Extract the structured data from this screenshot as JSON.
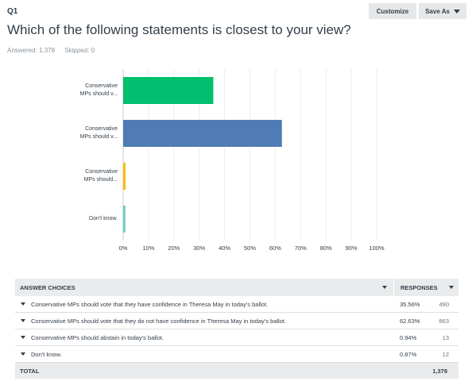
{
  "question": {
    "number": "Q1",
    "title": "Which of the following statements is closest to your view?",
    "answered": "Answered: 1,378",
    "skipped": "Skipped: 0"
  },
  "toolbar": {
    "customize_label": "Customize",
    "save_as_label": "Save As"
  },
  "chart_data": {
    "type": "bar",
    "orientation": "horizontal",
    "categories": [
      [
        "Conservative",
        "MPs should v..."
      ],
      [
        "Conservative",
        "MPs should v..."
      ],
      [
        "Conservative",
        "MPs should..."
      ],
      [
        "Don't know."
      ]
    ],
    "values": [
      35.56,
      62.63,
      0.94,
      0.87
    ],
    "colors": [
      "#00bf6f",
      "#507cb6",
      "#f9be00",
      "#6bc8cd"
    ],
    "x_ticks": [
      "0%",
      "10%",
      "20%",
      "30%",
      "40%",
      "50%",
      "60%",
      "70%",
      "80%",
      "90%",
      "100%"
    ],
    "xlim": [
      0,
      100
    ],
    "grid": true
  },
  "table": {
    "header_choices": "ANSWER CHOICES",
    "header_responses": "RESPONSES",
    "rows": [
      {
        "text": "Conservative MPs should vote that they have confidence in Theresa May in today's ballot.",
        "pct": "35.56%",
        "count": "490"
      },
      {
        "text": "Conservative MPs should vote that they do not have confidence in Theresa May in today's ballot.",
        "pct": "62.63%",
        "count": "863"
      },
      {
        "text": "Conservative MPs should abstain in today's ballot.",
        "pct": "0.94%",
        "count": "13"
      },
      {
        "text": "Don't know.",
        "pct": "0.87%",
        "count": "12"
      }
    ],
    "total_label": "TOTAL",
    "total_value": "1,378"
  }
}
